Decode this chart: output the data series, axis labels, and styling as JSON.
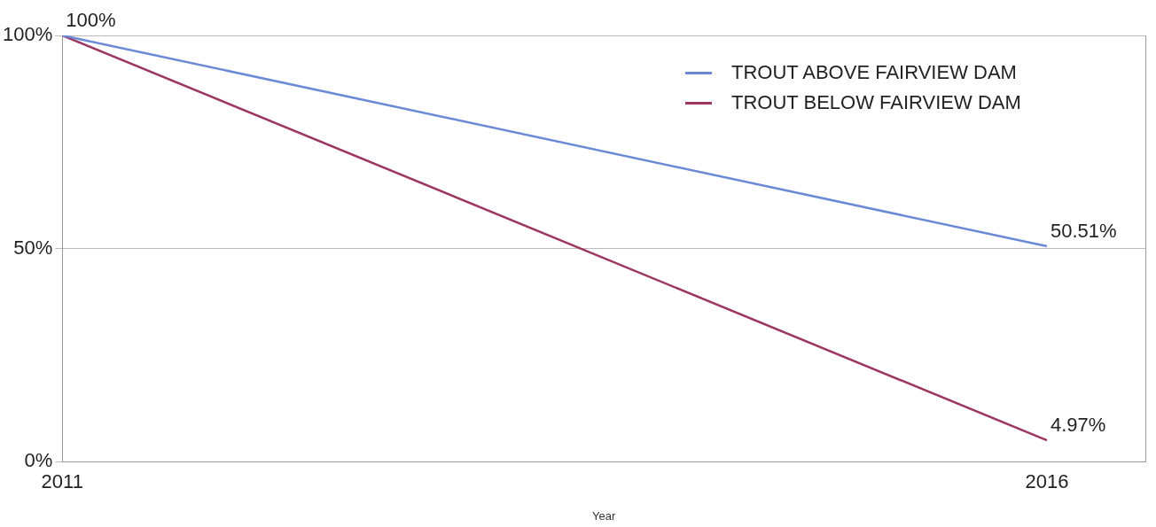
{
  "chart_data": {
    "type": "line",
    "xlabel": "Year",
    "x": [
      2011,
      2016
    ],
    "xlim": [
      2011,
      2016.5
    ],
    "xticks": [
      2011,
      2016
    ],
    "ylim": [
      0,
      100
    ],
    "yticks": [
      {
        "value": 0,
        "label": "0%"
      },
      {
        "value": 50,
        "label": "50%"
      },
      {
        "value": 100,
        "label": "100%"
      }
    ],
    "series": [
      {
        "name": "TROUT ABOVE FAIRVIEW DAM",
        "color": "#6b8ad6",
        "values": [
          100,
          50.51
        ],
        "value_labels": [
          "100%",
          "50.51%"
        ]
      },
      {
        "name": "TROUT BELOW FAIRVIEW DAM",
        "color": "#9c3560",
        "values": [
          100,
          4.97
        ],
        "value_labels": [
          null,
          "4.97%"
        ]
      }
    ],
    "grid": "y",
    "legend": "top right",
    "marker": "none",
    "line_style": "solid"
  }
}
